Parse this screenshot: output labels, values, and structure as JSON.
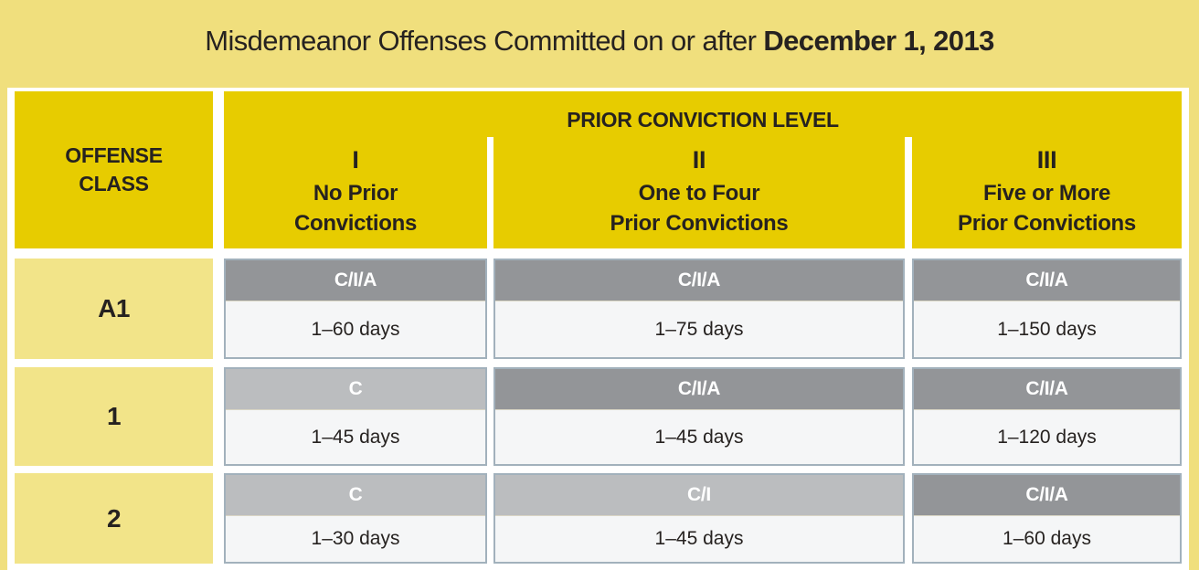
{
  "title": {
    "prefix": "Misdemeanor Offenses Committed on or after ",
    "date": "December 1, 2013"
  },
  "table": {
    "offense_class_header_line1": "OFFENSE",
    "offense_class_header_line2": "CLASS",
    "prior_conviction_header": "PRIOR CONVICTION LEVEL",
    "levels": [
      {
        "numeral": "I",
        "desc_line1": "No Prior",
        "desc_line2": "Convictions"
      },
      {
        "numeral": "II",
        "desc_line1": "One to Four",
        "desc_line2": "Prior Convictions"
      },
      {
        "numeral": "III",
        "desc_line1": "Five or More",
        "desc_line2": "Prior Convictions"
      }
    ],
    "rows": [
      {
        "offense_class": "A1",
        "cells": [
          {
            "punishment": "C/I/A",
            "shade": "dark",
            "range": "1–60 days"
          },
          {
            "punishment": "C/I/A",
            "shade": "dark",
            "range": "1–75 days"
          },
          {
            "punishment": "C/I/A",
            "shade": "dark",
            "range": "1–150 days"
          }
        ]
      },
      {
        "offense_class": "1",
        "cells": [
          {
            "punishment": "C",
            "shade": "light",
            "range": "1–45 days"
          },
          {
            "punishment": "C/I/A",
            "shade": "dark",
            "range": "1–45 days"
          },
          {
            "punishment": "C/I/A",
            "shade": "dark",
            "range": "1–120 days"
          }
        ]
      },
      {
        "offense_class": "2",
        "cells": [
          {
            "punishment": "C",
            "shade": "light",
            "range": "1–30 days"
          },
          {
            "punishment": "C/I",
            "shade": "light",
            "range": "1–45 days"
          },
          {
            "punishment": "C/I/A",
            "shade": "dark",
            "range": "1–60 days"
          }
        ]
      }
    ]
  },
  "colors": {
    "page_background": "#F0DF7D",
    "header_gold": "#E7CC00",
    "offense_cell_yellow": "#F2E489",
    "band_dark_gray": "#939598",
    "band_light_gray": "#BBBDBF",
    "cell_body": "#F5F6F7",
    "cell_border": "#A2B1BC",
    "text": "#262220"
  }
}
